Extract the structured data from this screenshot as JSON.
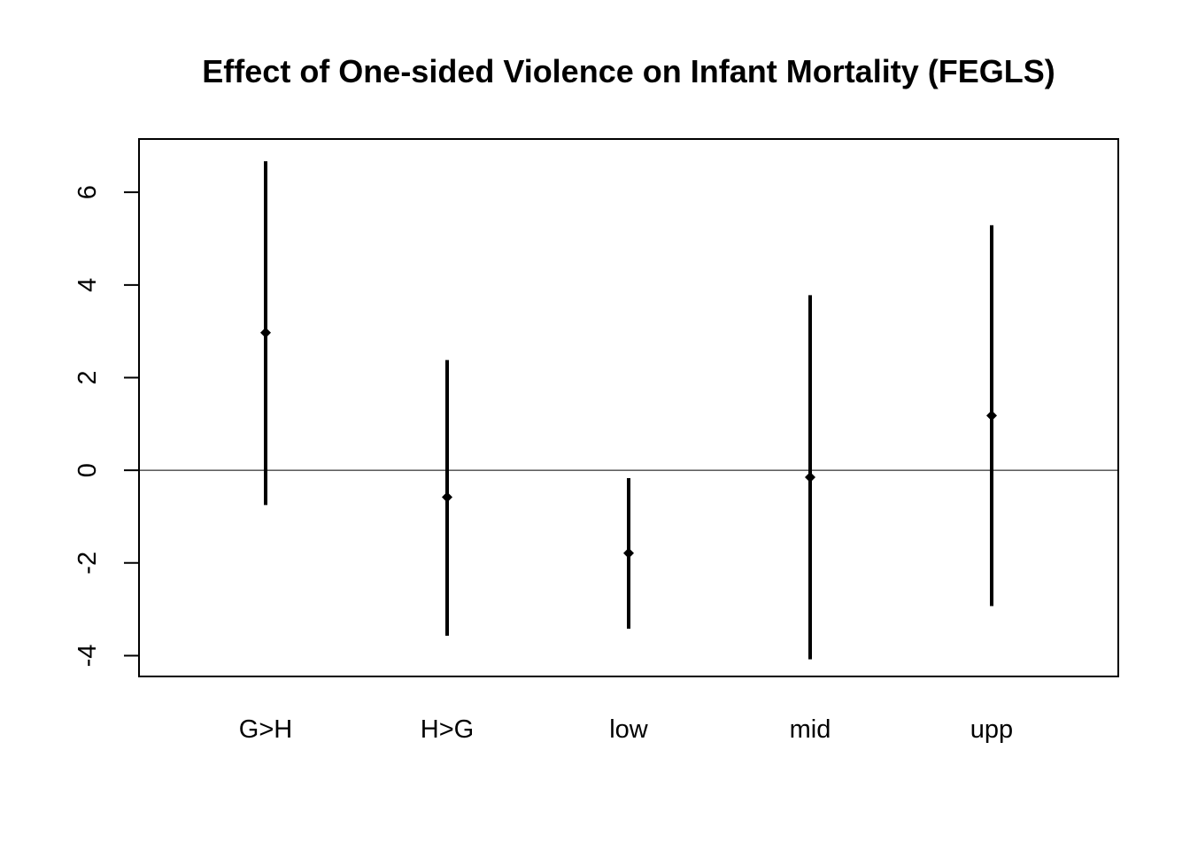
{
  "chart_data": {
    "type": "scatter",
    "title": "Effect of One-sided Violence on Infant Mortality (FEGLS)",
    "xlabel": "",
    "ylabel": "",
    "categories": [
      "G>H",
      "H>G",
      "low",
      "mid",
      "upp"
    ],
    "estimates": [
      2.97,
      -0.58,
      -1.79,
      -0.15,
      1.18
    ],
    "lower": [
      -0.75,
      -3.57,
      -3.42,
      -4.08,
      -2.93
    ],
    "upper": [
      6.67,
      2.38,
      -0.17,
      3.78,
      5.29
    ],
    "yticks": [
      -4,
      -2,
      0,
      2,
      4,
      6
    ],
    "ylim": [
      -4.45,
      7.15
    ],
    "reference_line": 0,
    "grid": false,
    "legend": "none",
    "colors": {
      "mark": "#000000",
      "axis": "#000000",
      "background": "#ffffff"
    }
  }
}
